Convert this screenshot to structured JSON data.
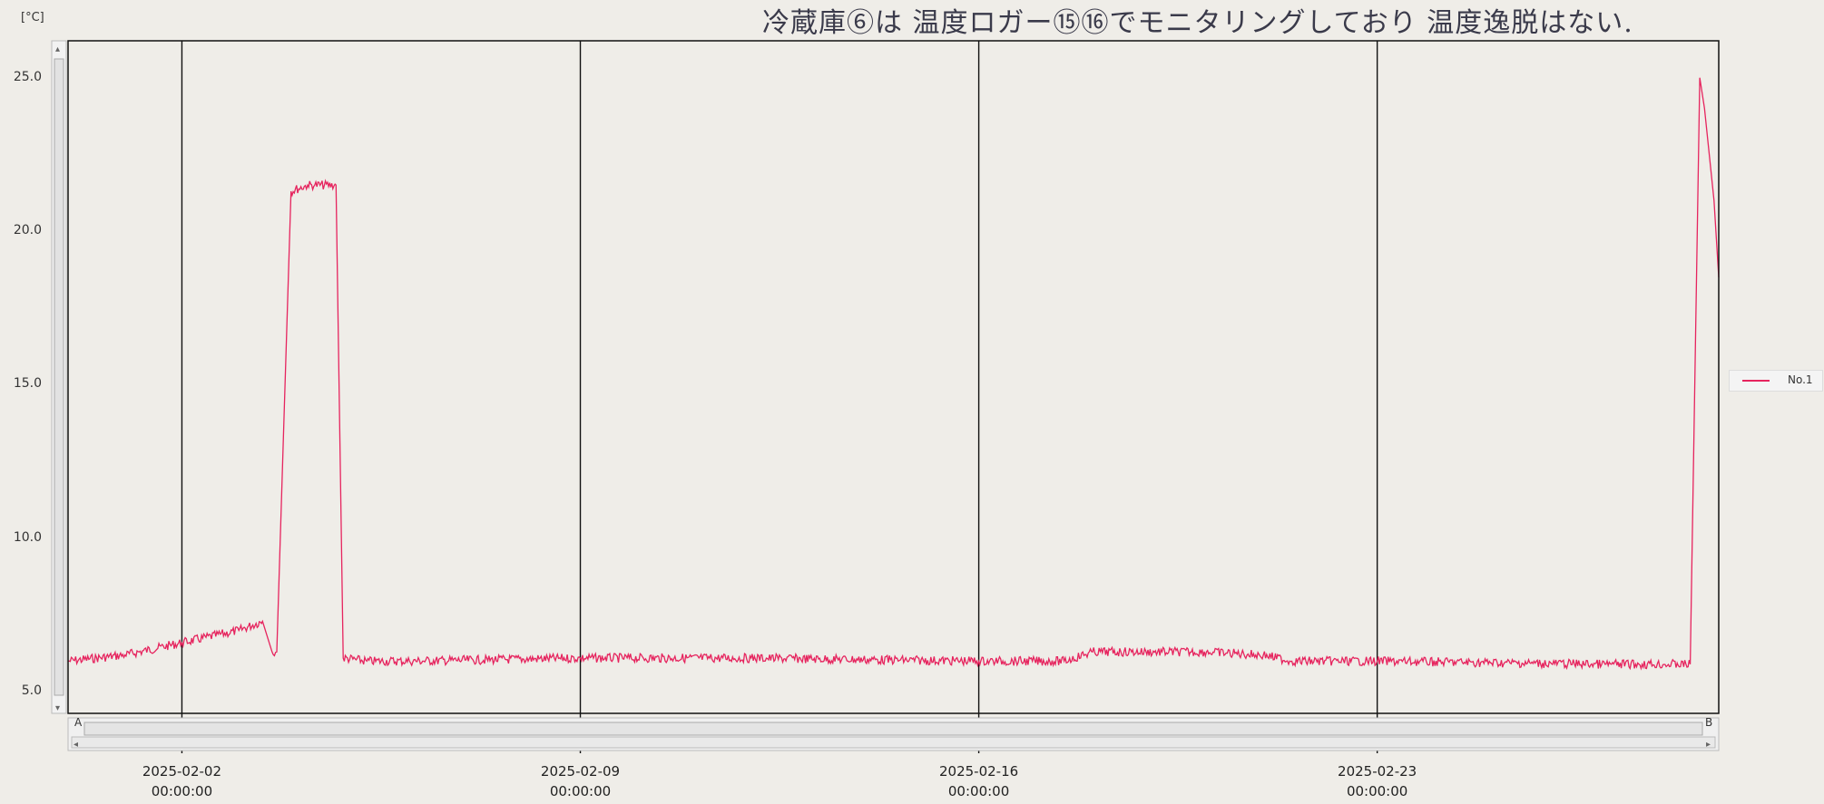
{
  "note": "冷蔵庫⑥は 温度ロガー⑮⑯でモニタリングしており 温度逸脱はない.",
  "colors": {
    "series": "#e6245e",
    "grid": "#111111",
    "plot_bg": "#efede8"
  },
  "scroll_markers": {
    "start": "A",
    "end": "B"
  },
  "chart_data": {
    "type": "line",
    "title": "",
    "xlabel": "",
    "ylabel": "[°C]",
    "xlim": [
      "2025-01-31T00:00:00",
      "2025-03-01T00:00:00"
    ],
    "ylim": [
      4.3,
      26.2
    ],
    "yticks": [
      {
        "value": 5.0,
        "label": "5.0"
      },
      {
        "value": 10.0,
        "label": "10.0"
      },
      {
        "value": 15.0,
        "label": "15.0"
      },
      {
        "value": 20.0,
        "label": "20.0"
      },
      {
        "value": 25.0,
        "label": "25.0"
      }
    ],
    "xticks": [
      {
        "value": "2025-02-02T00:00:00",
        "date": "2025-02-02",
        "time": "00:00:00"
      },
      {
        "value": "2025-02-09T00:00:00",
        "date": "2025-02-09",
        "time": "00:00:00"
      },
      {
        "value": "2025-02-16T00:00:00",
        "date": "2025-02-16",
        "time": "00:00:00"
      },
      {
        "value": "2025-02-23T00:00:00",
        "date": "2025-02-23",
        "time": "00:00:00"
      }
    ],
    "grid": "vertical",
    "legend_position": "right",
    "series": [
      {
        "name": "No.1",
        "x": [
          "2025-01-31T00:00:00",
          "2025-02-01T00:00:00",
          "2025-02-02T00:00:00",
          "2025-02-03T00:00:00",
          "2025-02-03T10:00:00",
          "2025-02-03T14:00:00",
          "2025-02-03T16:00:00",
          "2025-02-03T22:00:00",
          "2025-02-04T05:00:00",
          "2025-02-04T08:00:00",
          "2025-02-04T17:00:00",
          "2025-02-04T20:00:00",
          "2025-02-05T06:00:00",
          "2025-02-06T00:00:00",
          "2025-02-09T00:00:00",
          "2025-02-12T00:00:00",
          "2025-02-16T00:00:00",
          "2025-02-17T12:00:00",
          "2025-02-18T00:00:00",
          "2025-02-20T00:00:00",
          "2025-02-21T00:00:00",
          "2025-02-21T12:00:00",
          "2025-02-23T00:00:00",
          "2025-02-27T00:00:00",
          "2025-02-28T12:00:00",
          "2025-02-28T16:00:00",
          "2025-02-28T18:00:00",
          "2025-02-28T22:00:00",
          "2025-03-01T00:00:00"
        ],
        "y": [
          6.0,
          6.2,
          6.6,
          7.0,
          7.3,
          6.3,
          6.3,
          21.3,
          21.5,
          21.5,
          21.5,
          6.1,
          6.0,
          6.0,
          6.1,
          6.1,
          6.0,
          6.0,
          6.3,
          6.3,
          6.2,
          6.0,
          6.0,
          5.9,
          5.9,
          25.0,
          24.0,
          21.0,
          18.5
        ]
      }
    ]
  }
}
